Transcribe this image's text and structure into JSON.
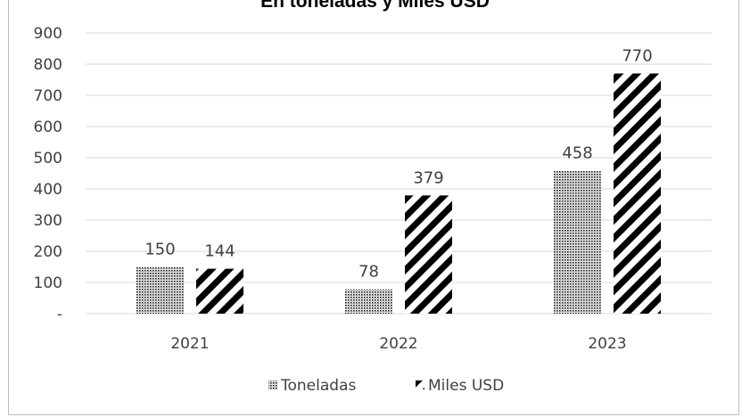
{
  "chart_data": {
    "type": "bar",
    "title": "En toneladas y Miles USD",
    "categories": [
      "2021",
      "2022",
      "2023"
    ],
    "series": [
      {
        "name": "Toneladas",
        "values": [
          150,
          78,
          458
        ],
        "labels": [
          "150",
          "78",
          "458"
        ],
        "pattern": "dots",
        "color": "#000000"
      },
      {
        "name": "Miles USD",
        "values": [
          144,
          379,
          770
        ],
        "labels": [
          "144",
          "379",
          "770"
        ],
        "pattern": "diagonal-stripes",
        "color": "#000000"
      }
    ],
    "ylim": [
      0,
      900
    ],
    "yticks": [
      0,
      100,
      200,
      300,
      400,
      500,
      600,
      700,
      800,
      900
    ],
    "ytick_labels": [
      "-",
      "100",
      "200",
      "300",
      "400",
      "500",
      "600",
      "700",
      "800",
      "900"
    ],
    "grid": true,
    "legend_position": "bottom",
    "xlabel": "",
    "ylabel": "",
    "grid_color": "#d9d9d9",
    "text_color": "#404040"
  }
}
